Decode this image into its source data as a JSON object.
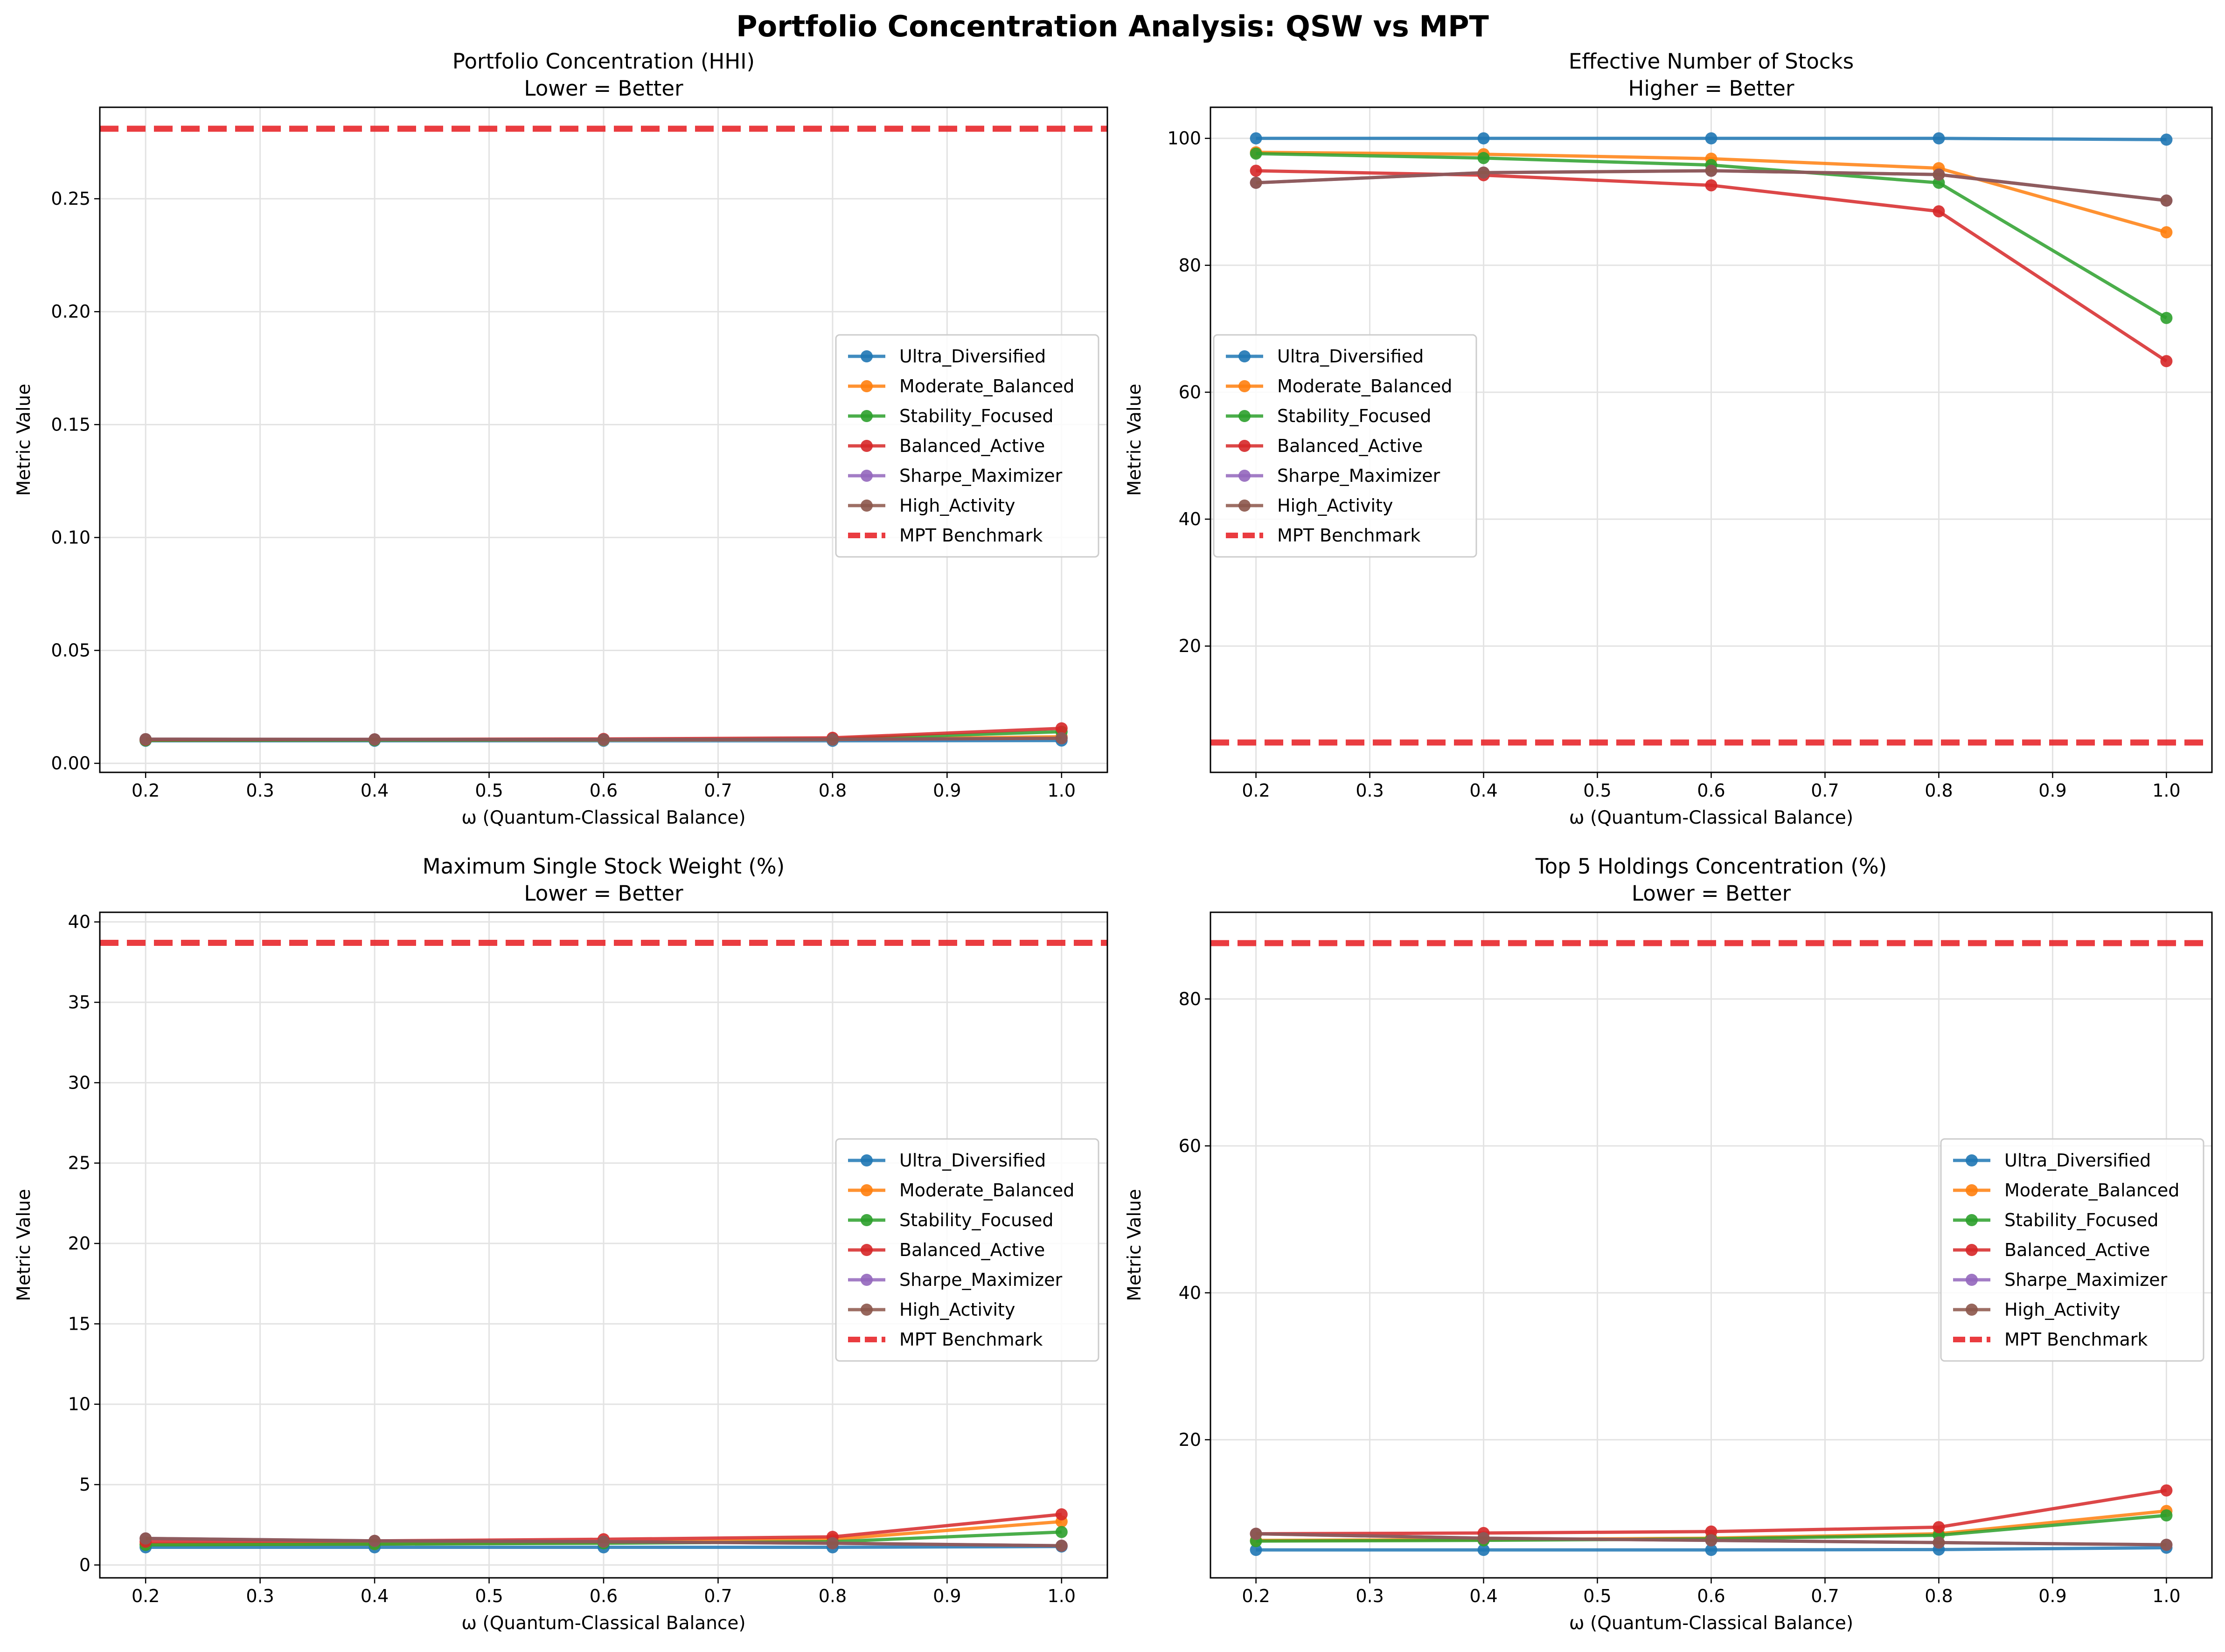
{
  "figure": {
    "title": "Portfolio Concentration Analysis: QSW vs MPT"
  },
  "colors": {
    "Ultra_Diversified": "#1f77b4",
    "Moderate_Balanced": "#ff7f0e",
    "Stability_Focused": "#2ca02c",
    "Balanced_Active": "#d62728",
    "Sharpe_Maximizer": "#9467bd",
    "High_Activity": "#8c564b",
    "MPT Benchmark": "#e8282c"
  },
  "chart_data": [
    {
      "type": "line",
      "title": "Portfolio Concentration (HHI)",
      "subtitle": "Lower = Better",
      "xlabel": "ω (Quantum-Classical Balance)",
      "ylabel": "Metric Value",
      "xlim": [
        0.16,
        1.04
      ],
      "ylim": [
        -0.004,
        0.2905
      ],
      "xticks": [
        "0.2",
        "0.3",
        "0.4",
        "0.5",
        "0.6",
        "0.7",
        "0.8",
        "0.9",
        "1.0"
      ],
      "yticks": [
        "0.00",
        "0.05",
        "0.10",
        "0.15",
        "0.20",
        "0.25"
      ],
      "grid": true,
      "legend_position": "center-right",
      "x": [
        0.2,
        0.4,
        0.6,
        0.8,
        1.0
      ],
      "series": [
        {
          "name": "Ultra_Diversified",
          "values": [
            0.01,
            0.01,
            0.01,
            0.01,
            0.0101
          ]
        },
        {
          "name": "Moderate_Balanced",
          "values": [
            0.0102,
            0.0103,
            0.0103,
            0.0105,
            0.0118
          ]
        },
        {
          "name": "Stability_Focused",
          "values": [
            0.0102,
            0.0103,
            0.0104,
            0.0108,
            0.014
          ]
        },
        {
          "name": "Balanced_Active",
          "values": [
            0.0105,
            0.0106,
            0.0108,
            0.0113,
            0.0155
          ]
        },
        {
          "name": "Sharpe_Maximizer",
          "values": [
            0.0107,
            0.0106,
            0.0105,
            0.0106,
            0.0111
          ]
        },
        {
          "name": "High_Activity",
          "values": [
            0.0107,
            0.0106,
            0.0105,
            0.0106,
            0.0111
          ]
        }
      ],
      "benchmark": {
        "name": "MPT Benchmark",
        "value": 0.281
      }
    },
    {
      "type": "line",
      "title": "Effective Number of Stocks",
      "subtitle": "Higher = Better",
      "xlabel": "ω (Quantum-Classical Balance)",
      "ylabel": "Metric Value",
      "xlim": [
        0.16,
        1.04
      ],
      "ylim": [
        0.1,
        104.9
      ],
      "xticks": [
        "0.2",
        "0.3",
        "0.4",
        "0.5",
        "0.6",
        "0.7",
        "0.8",
        "0.9",
        "1.0"
      ],
      "yticks": [
        "20",
        "40",
        "60",
        "80",
        "100"
      ],
      "grid": true,
      "legend_position": "center-left",
      "x": [
        0.2,
        0.4,
        0.6,
        0.8,
        1.0
      ],
      "series": [
        {
          "name": "Ultra_Diversified",
          "values": [
            100.0,
            100.0,
            100.0,
            100.0,
            99.8
          ]
        },
        {
          "name": "Moderate_Balanced",
          "values": [
            97.8,
            97.5,
            96.8,
            95.3,
            85.2
          ]
        },
        {
          "name": "Stability_Focused",
          "values": [
            97.6,
            96.9,
            95.8,
            93.0,
            71.7
          ]
        },
        {
          "name": "Balanced_Active",
          "values": [
            94.9,
            94.2,
            92.6,
            88.5,
            64.9
          ]
        },
        {
          "name": "Sharpe_Maximizer",
          "values": [
            93.0,
            94.6,
            94.9,
            94.3,
            90.2
          ]
        },
        {
          "name": "High_Activity",
          "values": [
            93.0,
            94.6,
            94.9,
            94.3,
            90.2
          ]
        }
      ],
      "benchmark": {
        "name": "MPT Benchmark",
        "value": 4.8
      }
    },
    {
      "type": "line",
      "title": "Maximum Single Stock Weight (%)",
      "subtitle": "Lower = Better",
      "xlabel": "ω (Quantum-Classical Balance)",
      "ylabel": "Metric Value",
      "xlim": [
        0.16,
        1.04
      ],
      "ylim": [
        -0.8,
        40.6
      ],
      "xticks": [
        "0.2",
        "0.3",
        "0.4",
        "0.5",
        "0.6",
        "0.7",
        "0.8",
        "0.9",
        "1.0"
      ],
      "yticks": [
        "0",
        "5",
        "10",
        "15",
        "20",
        "25",
        "30",
        "35",
        "40"
      ],
      "grid": true,
      "legend_position": "center-right",
      "x": [
        0.2,
        0.4,
        0.6,
        0.8,
        1.0
      ],
      "series": [
        {
          "name": "Ultra_Diversified",
          "values": [
            1.1,
            1.1,
            1.1,
            1.1,
            1.15
          ]
        },
        {
          "name": "Moderate_Balanced",
          "values": [
            1.3,
            1.3,
            1.4,
            1.6,
            2.7
          ]
        },
        {
          "name": "Stability_Focused",
          "values": [
            1.25,
            1.3,
            1.35,
            1.45,
            2.05
          ]
        },
        {
          "name": "Balanced_Active",
          "values": [
            1.45,
            1.5,
            1.6,
            1.75,
            3.15
          ]
        },
        {
          "name": "Sharpe_Maximizer",
          "values": [
            1.65,
            1.5,
            1.45,
            1.35,
            1.2
          ]
        },
        {
          "name": "High_Activity",
          "values": [
            1.65,
            1.5,
            1.45,
            1.35,
            1.2
          ]
        }
      ],
      "benchmark": {
        "name": "MPT Benchmark",
        "value": 38.7
      }
    },
    {
      "type": "line",
      "title": "Top 5 Holdings Concentration (%)",
      "subtitle": "Lower = Better",
      "xlabel": "ω (Quantum-Classical Balance)",
      "ylabel": "Metric Value",
      "xlim": [
        0.16,
        1.04
      ],
      "ylim": [
        1.2,
        91.8
      ],
      "xticks": [
        "0.2",
        "0.3",
        "0.4",
        "0.5",
        "0.6",
        "0.7",
        "0.8",
        "0.9",
        "1.0"
      ],
      "yticks": [
        "20",
        "40",
        "60",
        "80"
      ],
      "grid": true,
      "legend_position": "center-right",
      "x": [
        0.2,
        0.4,
        0.6,
        0.8,
        1.0
      ],
      "series": [
        {
          "name": "Ultra_Diversified",
          "values": [
            5.0,
            5.0,
            5.0,
            5.05,
            5.3
          ]
        },
        {
          "name": "Moderate_Balanced",
          "values": [
            6.3,
            6.4,
            6.6,
            7.2,
            10.3
          ]
        },
        {
          "name": "Stability_Focused",
          "values": [
            6.2,
            6.3,
            6.5,
            7.0,
            9.7
          ]
        },
        {
          "name": "Balanced_Active",
          "values": [
            7.2,
            7.3,
            7.5,
            8.1,
            13.1
          ]
        },
        {
          "name": "Sharpe_Maximizer",
          "values": [
            7.2,
            6.6,
            6.3,
            6.0,
            5.7
          ]
        },
        {
          "name": "High_Activity",
          "values": [
            7.2,
            6.6,
            6.3,
            6.0,
            5.7
          ]
        }
      ],
      "benchmark": {
        "name": "MPT Benchmark",
        "value": 87.6
      }
    }
  ]
}
